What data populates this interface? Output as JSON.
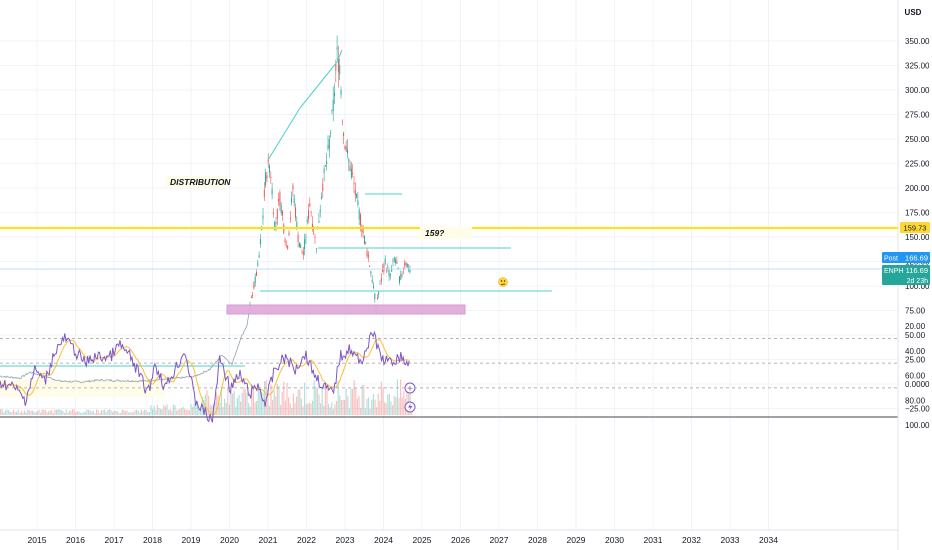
{
  "currency": "USD",
  "price_axis_ticks": [
    "350.00",
    "325.00",
    "300.00",
    "275.00",
    "250.00",
    "225.00",
    "200.00",
    "175.00",
    "150.00",
    "125.00",
    "100.00",
    "75.00",
    "50.00",
    "25.00",
    "0.0000",
    "−25.00"
  ],
  "rsi_axis_ticks": [
    "100.00",
    "80.00",
    "60.00",
    "40.00",
    "20.00"
  ],
  "time_axis_ticks": [
    "2015",
    "2016",
    "2017",
    "2018",
    "2019",
    "2020",
    "2021",
    "2022",
    "2023",
    "2024",
    "2025",
    "2026",
    "2027",
    "2028",
    "2029",
    "2030",
    "2031",
    "2032",
    "2033",
    "2034"
  ],
  "annotations": {
    "distribution": "DISTRIBUTION",
    "target_question": "159?"
  },
  "price_labels": {
    "level_line": "159.73",
    "post_tag": "Post",
    "post_value": "166.69",
    "symbol_tag": "ENPH",
    "symbol_value": "116.69",
    "countdown": "2d 23h"
  },
  "colors": {
    "candle_up": "#26a69a",
    "candle_down": "#ef5350",
    "trendline": "#4dd0c8",
    "level_line": "#ffe600",
    "level_label_bg": "#fdd835",
    "support_zone": "#e1a8d8",
    "rsi_line": "#7e57c2",
    "rsi_ma": "#fbc02d",
    "rsi_band": "#ede7f6",
    "post_tag": "#2196f3",
    "symbol_tag": "#26a69a"
  },
  "chart_data": [
    {
      "type": "line",
      "title": "",
      "ylim": [
        -25,
        350
      ],
      "x": [
        "2015",
        "2016",
        "2017",
        "2018",
        "2019",
        "2020",
        "2020-07",
        "2021-02",
        "2021-06",
        "2022-01",
        "2022-06",
        "2022-11",
        "2022-12",
        "2023-05",
        "2023-10",
        "2024-03",
        "2024-08",
        "2024-10"
      ],
      "series": [
        {
          "name": "",
          "values": [
            3,
            3,
            2,
            4,
            10,
            45,
            60,
            225,
            150,
            190,
            220,
            300,
            335,
            200,
            100,
            120,
            120,
            116.69
          ]
        }
      ],
      "levels": [
        159.73,
        166.69,
        116.69
      ],
      "support_zone": [
        75,
        82
      ]
    },
    {
      "type": "line",
      "title": "",
      "ylim": [
        20,
        100
      ],
      "x": [
        "2015",
        "2016",
        "2017",
        "2018",
        "2019",
        "2020",
        "2021",
        "2022",
        "2023",
        "2024",
        "2024-10"
      ],
      "series": [
        {
          "name": "",
          "values": [
            70,
            30,
            45,
            40,
            65,
            95,
            45,
            70,
            50,
            40,
            52
          ]
        }
      ],
      "bands": [
        30,
        70
      ]
    }
  ]
}
